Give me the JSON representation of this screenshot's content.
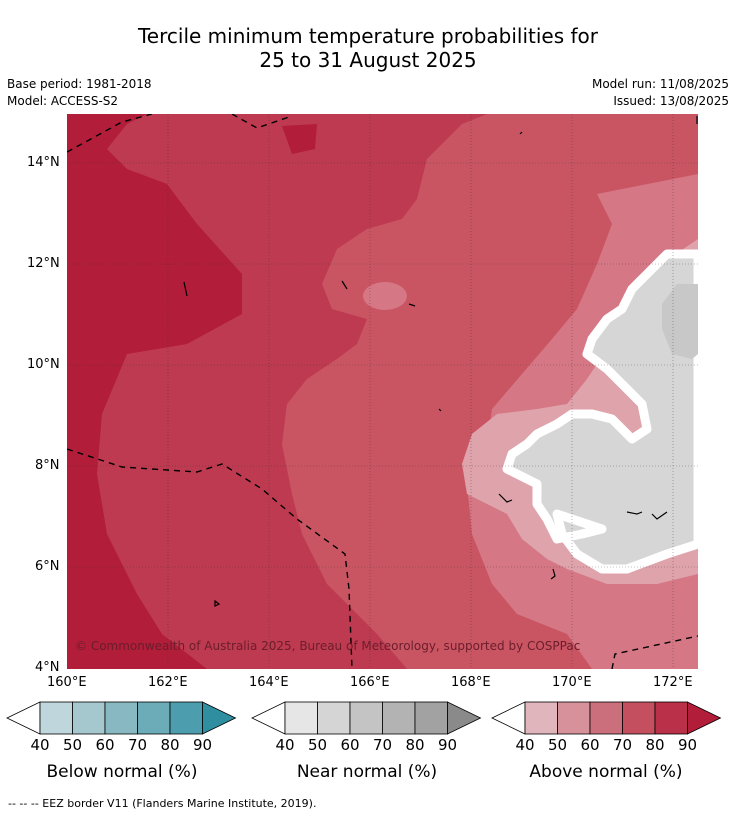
{
  "header": {
    "title_line1": "Tercile minimum temperature probabilities for",
    "title_line2": "25 to 31 August 2025",
    "base_period": "Base period: 1981-2018",
    "model": "Model: ACCESS-S2",
    "model_run": "Model run: 11/08/2025",
    "issued": "Issued: 13/08/2025"
  },
  "map": {
    "copyright": "© Commonwealth of Australia 2025, Bureau of Meteorology, supported by COSPPac",
    "lon_labels": [
      "160°E",
      "162°E",
      "164°E",
      "166°E",
      "168°E",
      "170°E",
      "172°E"
    ],
    "lat_labels": [
      "14°N",
      "12°N",
      "10°N",
      "8°N",
      "6°N",
      "4°N"
    ],
    "colors": {
      "above_90": "#b21d3a",
      "above_80": "#be3a50",
      "above_70": "#c95563",
      "above_60": "#d57785",
      "above_50": "#dfa3ab",
      "near_40": "#d6d6d6",
      "near_50": "#c8c8c8"
    }
  },
  "colorbars": [
    {
      "title": "Below normal (%)",
      "ticks": [
        "40",
        "50",
        "60",
        "70",
        "80",
        "90"
      ],
      "colors": [
        "#bfd6dc",
        "#a4c8ce",
        "#88b9c2",
        "#6bacb8",
        "#4c9dad",
        "#2f8ea0"
      ]
    },
    {
      "title": "Near normal (%)",
      "ticks": [
        "40",
        "50",
        "60",
        "70",
        "80",
        "90"
      ],
      "colors": [
        "#e6e6e6",
        "#d5d5d5",
        "#c4c4c4",
        "#b3b3b3",
        "#a2a2a2",
        "#8a8a8a"
      ]
    },
    {
      "title": "Above normal (%)",
      "ticks": [
        "40",
        "50",
        "60",
        "70",
        "80",
        "90"
      ],
      "colors": [
        "#e0b5bb",
        "#d6919b",
        "#cc6f7c",
        "#c4505f",
        "#ba3048",
        "#b21d3a"
      ]
    }
  ],
  "footer": {
    "legend_text": "--  --  -- EEZ border V11 (Flanders Marine Institute, 2019)."
  }
}
